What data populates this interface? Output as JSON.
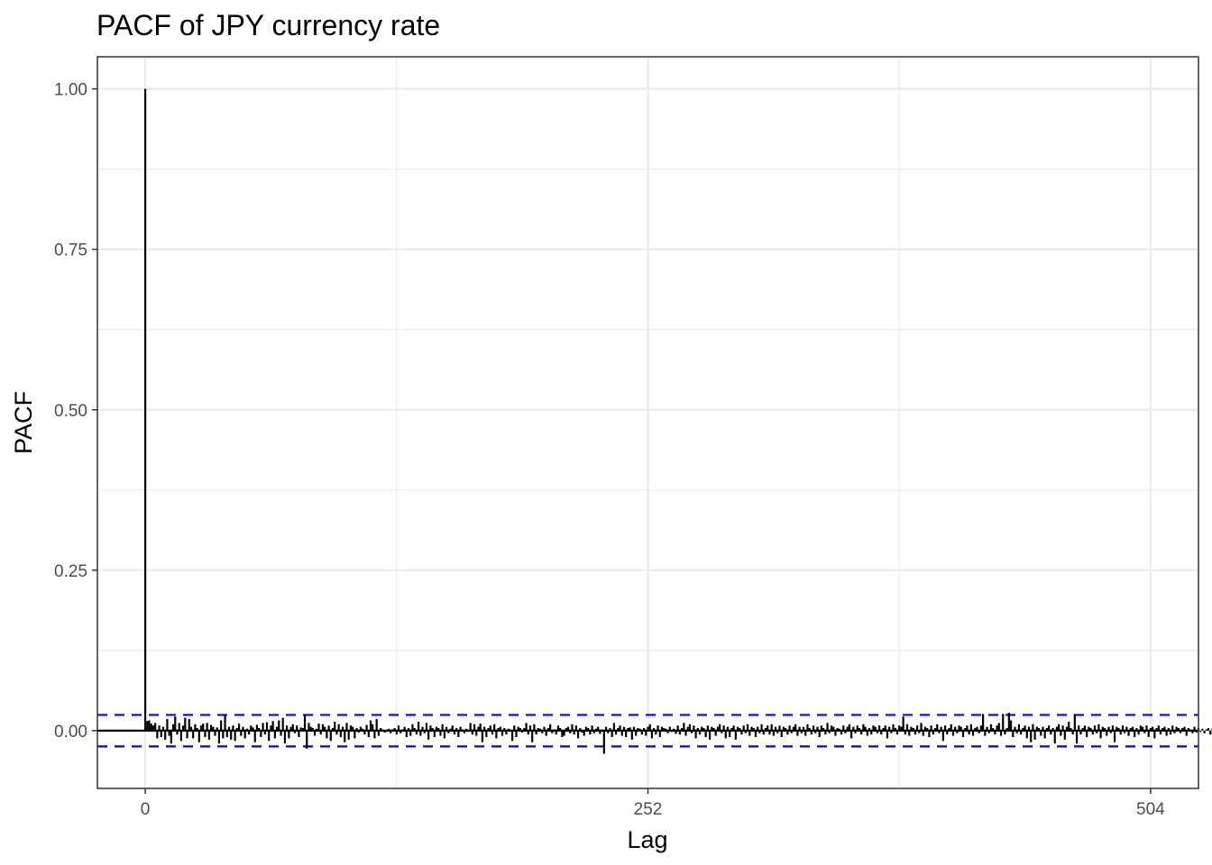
{
  "chart_data": {
    "type": "bar",
    "title": "PACF of JPY currency rate",
    "xlabel": "Lag",
    "ylabel": "PACF",
    "xlim": [
      -24,
      528
    ],
    "ylim": [
      -0.09,
      1.05
    ],
    "x_ticks": [
      0,
      252,
      504
    ],
    "x_tick_labels": [
      "0",
      "252",
      "504"
    ],
    "y_ticks": [
      0,
      0.25,
      0.5,
      0.75,
      1
    ],
    "y_tick_labels": [
      "0.00",
      "0.25",
      "0.50",
      "0.75",
      "1.00"
    ],
    "grid": true,
    "legend": "none",
    "confidence_band": 0.0245,
    "colors": {
      "bars": "#000000",
      "confidence": "#0000ff",
      "zero_line": "#000000"
    },
    "lags_from": 0,
    "values": [
      1.0,
      0.015,
      0.016,
      0.011,
      0.008,
      0.012,
      -0.012,
      0.008,
      -0.01,
      0.006,
      -0.014,
      0.018,
      -0.008,
      -0.02,
      0.01,
      0.022,
      -0.006,
      0.012,
      -0.016,
      0.008,
      0.02,
      -0.012,
      0.018,
      0.006,
      -0.012,
      0.01,
      0.004,
      -0.018,
      0.008,
      0.011,
      -0.01,
      0.012,
      -0.014,
      0.009,
      0.006,
      -0.008,
      0.005,
      -0.02,
      0.016,
      -0.012,
      0.024,
      -0.01,
      0.006,
      -0.014,
      0.008,
      -0.016,
      0.004,
      0.011,
      -0.008,
      0.006,
      -0.012,
      0.003,
      -0.006,
      0.008,
      0.005,
      -0.018,
      0.009,
      0.004,
      -0.01,
      0.012,
      -0.006,
      0.013,
      -0.016,
      0.008,
      0.015,
      -0.012,
      0.006,
      0.016,
      -0.008,
      0.02,
      -0.02,
      0.008,
      -0.012,
      0.006,
      0.01,
      -0.004,
      0.008,
      -0.01,
      0.005,
      0.004,
      0.025,
      -0.028,
      0.012,
      0.006,
      0.004,
      -0.008,
      0.003,
      0.011,
      -0.006,
      0.01,
      0.006,
      -0.012,
      0.008,
      -0.016,
      0.004,
      0.014,
      -0.006,
      0.01,
      -0.01,
      0.006,
      -0.018,
      0.012,
      -0.014,
      0.008,
      0.006,
      -0.012,
      0.004,
      -0.003,
      0.006,
      0.003,
      -0.006,
      0.009,
      -0.01,
      0.016,
      0.01,
      -0.012,
      0.018,
      -0.008,
      0.004,
      0.002,
      -0.003,
      -0.002,
      0.003,
      -0.004,
      0.002,
      0.004,
      -0.006,
      0.008,
      -0.004,
      0.002,
      0.006,
      -0.01,
      0.004,
      -0.008,
      0.01,
      0.004,
      -0.006,
      0.014,
      -0.008,
      0.006,
      -0.004,
      0.012,
      -0.014,
      0.008,
      0.004,
      -0.01,
      0.006,
      0.004,
      -0.008,
      0.01,
      -0.012,
      0.006,
      -0.004,
      0.003,
      0.008,
      -0.006,
      0.004,
      -0.01,
      0.006,
      0.002,
      -0.004,
      0.003,
      -0.002,
      0.012,
      -0.006,
      0.01,
      -0.008,
      0.006,
      0.011,
      -0.018,
      0.006,
      -0.01,
      0.004,
      0.008,
      -0.006,
      0.01,
      -0.012,
      0.004,
      0.006,
      -0.008,
      0.004,
      -0.006,
      0.003,
      0.002,
      -0.016,
      0.008,
      -0.01,
      0.006,
      0.004,
      -0.003,
      0.004,
      0.012,
      -0.006,
      0.008,
      -0.018,
      0.01,
      -0.006,
      0.004,
      0.003,
      -0.004,
      0.006,
      -0.008,
      0.004,
      0.01,
      -0.004,
      0.002,
      -0.006,
      0.008,
      0.004,
      -0.01,
      -0.008,
      0.004,
      0.006,
      -0.004,
      0.01,
      -0.006,
      0.008,
      -0.012,
      0.004,
      -0.003,
      -0.008,
      0.006,
      0.004,
      -0.006,
      0.008,
      -0.004,
      0.003,
      0.006,
      -0.005,
      0.002,
      -0.036,
      0.006,
      -0.004,
      0.004,
      -0.01,
      0.012,
      -0.006,
      0.004,
      0.008,
      -0.008,
      0.006,
      -0.01,
      0.004,
      0.005,
      -0.014,
      0.006,
      -0.008,
      0.004,
      0.003,
      -0.006,
      0.004,
      -0.008,
      0.006,
      0.01,
      -0.012,
      0.004,
      -0.006,
      0.008,
      -0.01,
      0.006,
      0.004,
      0.003,
      -0.004,
      0.006,
      -0.002,
      0.003,
      -0.005,
      0.008,
      -0.006,
      0.004,
      0.012,
      -0.008,
      0.006,
      0.01,
      -0.004,
      0.008,
      -0.012,
      0.004,
      -0.006,
      0.006,
      0.004,
      -0.01,
      0.008,
      -0.014,
      0.006,
      0.004,
      -0.008,
      0.006,
      0.01,
      -0.004,
      0.008,
      -0.012,
      0.006,
      -0.01,
      0.004,
      0.008,
      -0.014,
      0.006,
      0.004,
      -0.006,
      0.008,
      -0.004,
      0.01,
      -0.008,
      0.006,
      0.004,
      -0.01,
      0.006,
      -0.004,
      0.01,
      -0.006,
      0.004,
      0.008,
      -0.006,
      0.01,
      -0.008,
      0.006,
      -0.004,
      0.008,
      -0.01,
      0.006,
      0.004,
      -0.006,
      0.008,
      -0.004,
      0.006,
      0.01,
      -0.008,
      0.006,
      -0.004,
      0.006,
      -0.008,
      0.01,
      0.004,
      -0.006,
      0.008,
      -0.004,
      0.006,
      -0.01,
      0.008,
      0.004,
      -0.006,
      0.012,
      -0.004,
      0.008,
      0.006,
      -0.008,
      0.004,
      0.003,
      -0.006,
      0.008,
      -0.004,
      0.006,
      0.01,
      -0.012,
      0.006,
      -0.004,
      0.008,
      0.004,
      -0.006,
      0.01,
      0.006,
      -0.008,
      0.004,
      -0.006,
      0.008,
      0.006,
      -0.004,
      0.008,
      -0.006,
      0.004,
      0.008,
      -0.012,
      0.006,
      -0.004,
      0.01,
      0.004,
      -0.006,
      0.008,
      0.006,
      0.022,
      -0.006,
      0.01,
      -0.008,
      0.006,
      0.004,
      -0.006,
      0.008,
      -0.004,
      0.012,
      -0.008,
      0.006,
      0.004,
      -0.01,
      0.008,
      -0.006,
      0.004,
      0.01,
      -0.004,
      0.006,
      -0.016,
      0.008,
      -0.006,
      0.004,
      0.01,
      -0.008,
      0.006,
      -0.004,
      0.008,
      0.006,
      -0.01,
      0.004,
      0.008,
      -0.006,
      0.01,
      -0.008,
      0.004,
      0.006,
      -0.004,
      0.008,
      0.026,
      -0.008,
      0.006,
      -0.004,
      0.01,
      0.004,
      -0.006,
      0.008,
      0.012,
      -0.008,
      0.026,
      -0.006,
      0.004,
      0.028,
      0.016,
      -0.01,
      0.006,
      -0.004,
      0.01,
      -0.006,
      0.004,
      0.008,
      -0.012,
      0.006,
      -0.018,
      0.01,
      -0.014,
      0.006,
      0.004,
      -0.008,
      0.006,
      -0.012,
      0.004,
      0.008,
      -0.006,
      0.004,
      -0.02,
      0.006,
      0.01,
      -0.008,
      0.008,
      -0.014,
      0.006,
      0.014,
      0.004,
      -0.006,
      0.026,
      -0.02,
      0.008,
      -0.006,
      0.004,
      0.008,
      -0.01,
      0.006,
      0.004,
      -0.006,
      0.008,
      -0.004,
      0.01,
      -0.012,
      0.006,
      0.004,
      -0.008,
      0.006,
      -0.004,
      0.008,
      -0.018,
      0.006,
      0.004,
      -0.006,
      0.008,
      -0.004,
      0.006,
      -0.008,
      0.004,
      0.006,
      -0.01,
      0.004,
      -0.006,
      0.008,
      0.006,
      -0.004,
      0.008,
      -0.01,
      0.004,
      0.006,
      -0.012,
      0.004,
      0.008,
      -0.006,
      0.004,
      0.006,
      -0.008,
      0.004,
      -0.006,
      0.008,
      -0.004,
      0.006,
      0.004,
      -0.004,
      0.004,
      0.006,
      -0.008,
      0.004,
      0.002,
      -0.004,
      0.006,
      -0.003,
      0.004,
      -0.002,
      0.003,
      -0.004,
      0.002,
      0.004,
      -0.006,
      0.003,
      -0.002,
      0.004,
      0.002,
      -0.003,
      0.004,
      -0.002,
      0.003,
      -0.004,
      0.002,
      0.003,
      -0.002,
      0.004,
      -0.003,
      0.002,
      -0.006,
      0.004,
      0.003,
      -0.002,
      0.004,
      -0.01,
      0.003,
      0.002,
      -0.004,
      0.006,
      -0.003,
      0.004,
      0.002,
      -0.003,
      0.004,
      -0.002,
      0.003,
      0.002,
      -0.004,
      0.01,
      0.004,
      -0.008,
      0.006,
      -0.004,
      0.003,
      0.002,
      -0.006,
      0.004,
      -0.003,
      0.002,
      0.004,
      -0.004,
      0.003,
      0.002,
      -0.002,
      0.004,
      -0.003,
      0.002,
      0.003,
      -0.004,
      0.002,
      0.004,
      -0.002,
      0.003,
      -0.004,
      0.002,
      0.003,
      -0.002,
      0.004,
      -0.003,
      0.002,
      0.003,
      -0.006,
      0.004,
      0.002,
      -0.003,
      0.004,
      -0.002,
      0.003,
      0.002
    ]
  }
}
